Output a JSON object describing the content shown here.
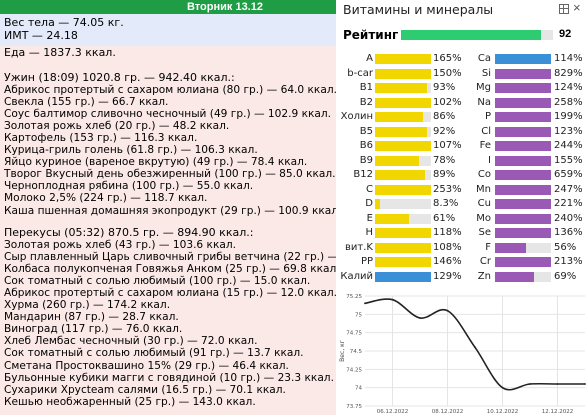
{
  "left_panel": {
    "day_title": "Вторник 13.12",
    "weight": "Вес тела — 74.05 кг.",
    "bmi": "ИМТ — 24.18",
    "food_total": "Еда — 1837.3 ккал.",
    "dinner": {
      "header": "Ужин (18:09) 1020.8 гр. — 942.40 ккал.:",
      "items": [
        "Абрикос протертый с сахаром юлиана (80 гр.) — 64.0 ккал.",
        "Свекла (155 гр.) — 66.7 ккал.",
        "Соус балтимор сливочно чесночный (49 гр.) — 102.9 ккал.",
        "Золотая рожь хлеб (20 гр.) — 48.2 ккал.",
        "Картофель (153 гр.) — 116.3 ккал.",
        "Курица-гриль голень (61.8 гр.) — 106.3 ккал.",
        "Яйцо куриное (вареное вкрутую) (49 гр.) — 78.4 ккал.",
        "Творог Вкусный день обезжиренный (100 гр.) — 85.0 ккал.",
        "Черноплодная рябина (100 гр.) — 55.0 ккал.",
        "Молоко 2,5% (224 гр.) — 118.7 ккал.",
        "Каша пшенная домашняя экопродукт (29 гр.) — 100.9 ккал."
      ]
    },
    "snacks": {
      "header": "Перекусы (05:32) 870.5 гр. — 894.90 ккал.:",
      "items": [
        "Золотая рожь хлеб (43 гр.) — 103.6 ккал.",
        "Сыр плавленный Царь сливочный грибы ветчина (22 гр.) — 47.1",
        "Колбаса полукопченая Говяжья Анком (25 гр.) — 69.8 ккал.",
        "Сок томатный с солью любимый (100 гр.) — 15.0 ккал.",
        "Абрикос протертый с сахаром юлиана (15 гр.) — 12.0 ккал.",
        "Хурма (260 гр.) — 174.2 ккал.",
        "Мандарин (87 гр.) — 28.7 ккал.",
        "Виноград (117 гр.) — 76.0 ккал.",
        "Хлеб Лембас чесночный (30 гр.) — 72.0 ккал.",
        "Сок томатный с солью любимый (91 гр.) — 13.7 ккал.",
        "Сметана Простоквашино 15% (29 гр.) — 46.4 ккал.",
        "Бульонные кубики магги с говядиной (10 гр.) — 23.3 ккал.",
        "Сухарики Хрусteam салями (16.5 гр.) — 70.1 ккал.",
        "Кешью необжаренный (25 гр.) — 143.0 ккал."
      ]
    }
  },
  "right_panel": {
    "title": "Витамины и минералы",
    "icons": {
      "grid": "grid-icon",
      "close": "close-icon"
    },
    "rating": {
      "label": "Рейтинг",
      "value": "92",
      "fraction": 0.92,
      "color": "#2ecc71"
    },
    "colors": {
      "vitamin": "#f2d600",
      "mineral": "#9b59b6",
      "blue": "#3a8fd6",
      "track": "#e6e6e6"
    },
    "vitamins": [
      {
        "name": "A",
        "pct": "165%",
        "value": 1.65,
        "color": "#f2d600"
      },
      {
        "name": "b-car",
        "pct": "150%",
        "value": 1.5,
        "color": "#f2d600"
      },
      {
        "name": "B1",
        "pct": "93%",
        "value": 0.93,
        "color": "#f2d600"
      },
      {
        "name": "B2",
        "pct": "102%",
        "value": 1.02,
        "color": "#f2d600"
      },
      {
        "name": "Холин",
        "pct": "86%",
        "value": 0.86,
        "color": "#f2d600"
      },
      {
        "name": "B5",
        "pct": "92%",
        "value": 0.92,
        "color": "#f2d600"
      },
      {
        "name": "B6",
        "pct": "107%",
        "value": 1.07,
        "color": "#f2d600"
      },
      {
        "name": "B9",
        "pct": "78%",
        "value": 0.78,
        "color": "#f2d600"
      },
      {
        "name": "B12",
        "pct": "89%",
        "value": 0.89,
        "color": "#f2d600"
      },
      {
        "name": "C",
        "pct": "253%",
        "value": 2.53,
        "color": "#f2d600"
      },
      {
        "name": "D",
        "pct": "8.3%",
        "value": 0.083,
        "color": "#f2d600"
      },
      {
        "name": "E",
        "pct": "61%",
        "value": 0.61,
        "color": "#f2d600"
      },
      {
        "name": "H",
        "pct": "118%",
        "value": 1.18,
        "color": "#f2d600"
      },
      {
        "name": "вит.K",
        "pct": "108%",
        "value": 1.08,
        "color": "#f2d600"
      },
      {
        "name": "PP",
        "pct": "146%",
        "value": 1.46,
        "color": "#f2d600"
      },
      {
        "name": "Калий",
        "pct": "129%",
        "value": 1.29,
        "color": "#3a8fd6"
      }
    ],
    "minerals": [
      {
        "name": "Ca",
        "pct": "114%",
        "value": 1.14,
        "color": "#3a8fd6"
      },
      {
        "name": "Si",
        "pct": "829%",
        "value": 8.29,
        "color": "#9b59b6"
      },
      {
        "name": "Mg",
        "pct": "124%",
        "value": 1.24,
        "color": "#9b59b6"
      },
      {
        "name": "Na",
        "pct": "258%",
        "value": 2.58,
        "color": "#9b59b6"
      },
      {
        "name": "P",
        "pct": "199%",
        "value": 1.99,
        "color": "#9b59b6"
      },
      {
        "name": "Cl",
        "pct": "123%",
        "value": 1.23,
        "color": "#9b59b6"
      },
      {
        "name": "Fe",
        "pct": "244%",
        "value": 2.44,
        "color": "#9b59b6"
      },
      {
        "name": "I",
        "pct": "155%",
        "value": 1.55,
        "color": "#9b59b6"
      },
      {
        "name": "Co",
        "pct": "659%",
        "value": 6.59,
        "color": "#9b59b6"
      },
      {
        "name": "Mn",
        "pct": "247%",
        "value": 2.47,
        "color": "#9b59b6"
      },
      {
        "name": "Cu",
        "pct": "221%",
        "value": 2.21,
        "color": "#9b59b6"
      },
      {
        "name": "Mo",
        "pct": "240%",
        "value": 2.4,
        "color": "#9b59b6"
      },
      {
        "name": "Se",
        "pct": "136%",
        "value": 1.36,
        "color": "#9b59b6"
      },
      {
        "name": "F",
        "pct": "56%",
        "value": 0.56,
        "color": "#9b59b6"
      },
      {
        "name": "Cr",
        "pct": "213%",
        "value": 2.13,
        "color": "#9b59b6"
      },
      {
        "name": "Zn",
        "pct": "69%",
        "value": 0.69,
        "color": "#9b59b6"
      }
    ]
  },
  "chart_data": {
    "type": "line",
    "title": "",
    "ylabel": "Вес, кг",
    "xlabel": "",
    "ylim": [
      73.75,
      75.25
    ],
    "yticks": [
      "75.25",
      "75",
      "74.75",
      "74.5",
      "74.25",
      "74",
      "73.75"
    ],
    "xticks": [
      "06.12.2022",
      "08.12.2022",
      "10.12.2022",
      "12.12.2022"
    ],
    "x": [
      "05.12.2022",
      "06.12.2022",
      "07.12.2022",
      "08.12.2022",
      "09.12.2022",
      "10.12.2022",
      "11.12.2022",
      "12.12.2022",
      "13.12.2022"
    ],
    "values": [
      75.15,
      75.2,
      74.95,
      75.05,
      74.55,
      74.0,
      74.05,
      74.05,
      74.05
    ],
    "grid": true,
    "line_color": "#222222"
  }
}
